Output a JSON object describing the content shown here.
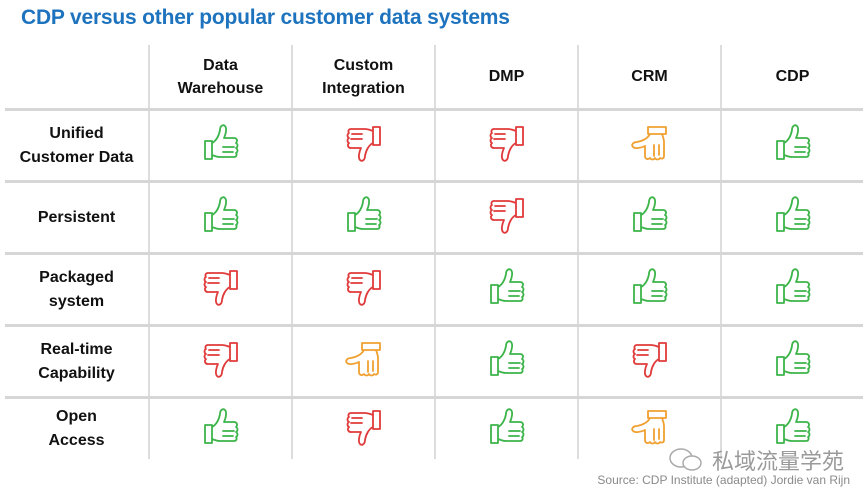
{
  "title": "CDP versus other popular customer data systems",
  "columns": [
    "Data\nWarehouse",
    "Custom\nIntegration",
    "DMP",
    "CRM",
    "CDP"
  ],
  "rows": [
    {
      "label": "Unified\nCustomer Data",
      "ratings": [
        "up",
        "down",
        "down",
        "sideways",
        "up"
      ]
    },
    {
      "label": "Persistent",
      "ratings": [
        "up",
        "up",
        "down",
        "up",
        "up"
      ]
    },
    {
      "label": "Packaged\nsystem",
      "ratings": [
        "down",
        "down",
        "up",
        "up",
        "up"
      ]
    },
    {
      "label": "Real-time\nCapability",
      "ratings": [
        "down",
        "sideways",
        "up",
        "down",
        "up"
      ]
    },
    {
      "label": "Open\nAccess",
      "ratings": [
        "up",
        "down",
        "up",
        "sideways",
        "up"
      ]
    }
  ],
  "colors": {
    "up": "#3cb44a",
    "down": "#e03a3a",
    "sideways": "#f0a030",
    "title": "#1e73be"
  },
  "icons": {
    "up": "thumbs-up-icon",
    "down": "thumbs-down-icon",
    "sideways": "thumbs-sideways-icon"
  },
  "watermark": "私域流量学苑",
  "source": "Source: CDP Institute (adapted) Jordie van Rijn"
}
